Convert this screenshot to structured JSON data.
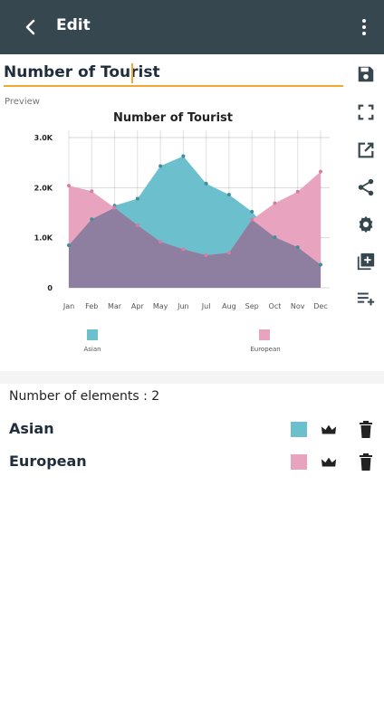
{
  "appbar": {
    "title": "Edit",
    "back_icon": "arrow-back-icon",
    "more_icon": "more-vert-icon"
  },
  "editor": {
    "name_value": "Number of Tourist",
    "preview_label": "Preview"
  },
  "toolbar": {
    "icons": [
      "save-icon",
      "fullscreen-icon",
      "open-external-icon",
      "share-icon",
      "settings-icon",
      "add-library-icon",
      "playlist-add-icon"
    ]
  },
  "elements": {
    "count_label": "Number of elements : 2",
    "items": [
      {
        "name": "Asian",
        "color": "#6cbfcc"
      },
      {
        "name": "European",
        "color": "#e8a4bf"
      }
    ]
  },
  "chart_data": {
    "type": "area",
    "title": "Number of Tourist",
    "categories": [
      "Jan",
      "Feb",
      "Mar",
      "Apr",
      "May",
      "Jun",
      "Jul",
      "Aug",
      "Sep",
      "Oct",
      "Nov",
      "Dec"
    ],
    "yticks": [
      "0",
      "1.0K",
      "2.0K",
      "3.0K"
    ],
    "ylim": [
      0,
      3000
    ],
    "grid": true,
    "legend": "bottom",
    "series": [
      {
        "name": "Asian",
        "color": "#6cbfcc",
        "values": [
          850,
          1370,
          1640,
          1780,
          2430,
          2630,
          2080,
          1860,
          1520,
          1010,
          810,
          460
        ]
      },
      {
        "name": "European",
        "color": "#e8a4bf",
        "values": [
          2040,
          1930,
          1600,
          1250,
          920,
          770,
          650,
          700,
          1360,
          1690,
          1920,
          2320
        ]
      }
    ],
    "overlap_color": "#8e7fa0"
  }
}
